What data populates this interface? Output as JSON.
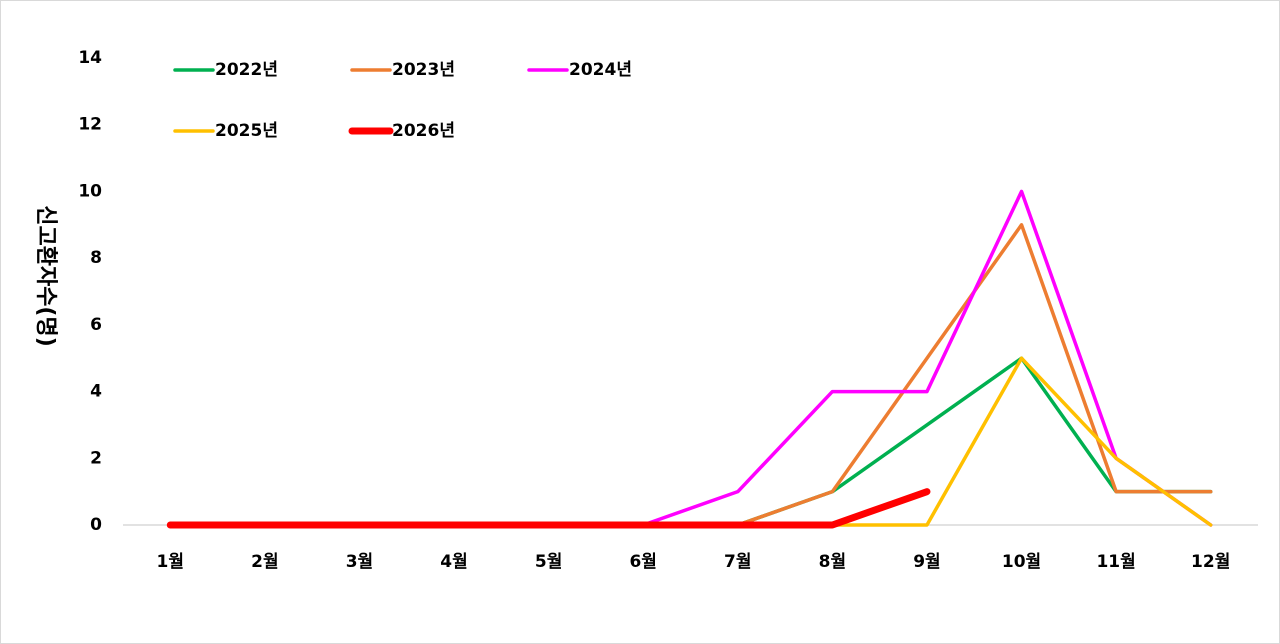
{
  "chart_data": {
    "type": "line",
    "y_label": "신고환자수(명)",
    "categories": [
      "1월",
      "2월",
      "3월",
      "4월",
      "5월",
      "6월",
      "7월",
      "8월",
      "9월",
      "10월",
      "11월",
      "12월"
    ],
    "ylim": [
      0,
      14
    ],
    "yticks": [
      0,
      2,
      4,
      6,
      8,
      10,
      12,
      14
    ],
    "series": [
      {
        "name": "2022년",
        "color": "#00b050",
        "values": [
          0,
          0,
          0,
          0,
          0,
          0,
          0,
          1,
          3,
          5,
          1,
          1
        ]
      },
      {
        "name": "2023년",
        "color": "#ed7d31",
        "values": [
          0,
          0,
          0,
          0,
          0,
          0,
          0,
          1,
          5,
          9,
          1,
          1
        ]
      },
      {
        "name": "2024년",
        "color": "#ff00ff",
        "values": [
          0,
          0,
          0,
          0,
          0,
          0,
          1,
          4,
          4,
          10,
          2,
          0
        ]
      },
      {
        "name": "2025년",
        "color": "#ffc000",
        "values": [
          0,
          0,
          0,
          0,
          0,
          0,
          0,
          0,
          0,
          5,
          2,
          0
        ]
      },
      {
        "name": "2026년",
        "color": "#ff0000",
        "values": [
          0,
          0,
          0,
          0,
          0,
          0,
          0,
          0,
          1,
          null,
          null,
          null
        ]
      }
    ]
  }
}
